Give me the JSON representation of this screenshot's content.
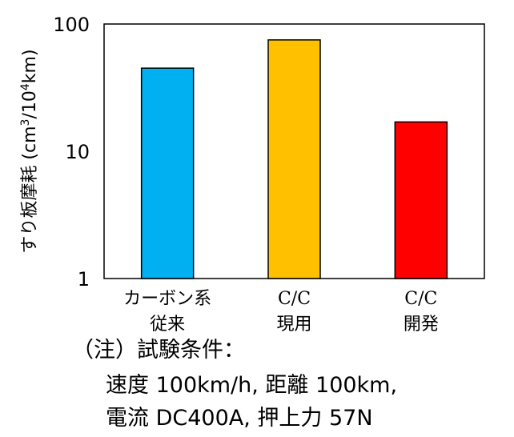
{
  "chart_data": {
    "type": "bar",
    "y_scale": "log",
    "ylim": [
      1,
      100
    ],
    "yticks": [
      "1",
      "10",
      "100"
    ],
    "ylabel_main": "すり板摩耗 (cm",
    "ylabel_sup1": "3",
    "ylabel_mid": "/10",
    "ylabel_sup2": "4",
    "ylabel_end": "km)",
    "grid": false,
    "categories": [
      {
        "line1": "カーボン系",
        "line2": "従来"
      },
      {
        "line1": "C/C",
        "line2": "現用"
      },
      {
        "line1": "C/C",
        "line2": "開発"
      }
    ],
    "values": [
      45,
      75,
      17
    ],
    "colors": [
      "#00b0f0",
      "#ffc000",
      "#ff0000"
    ]
  },
  "notes": {
    "line1": "（注）試験条件：",
    "line2": "速度 100km/h,  距離 100km,",
    "line3": "電流 DC400A,   押上力 57N"
  }
}
